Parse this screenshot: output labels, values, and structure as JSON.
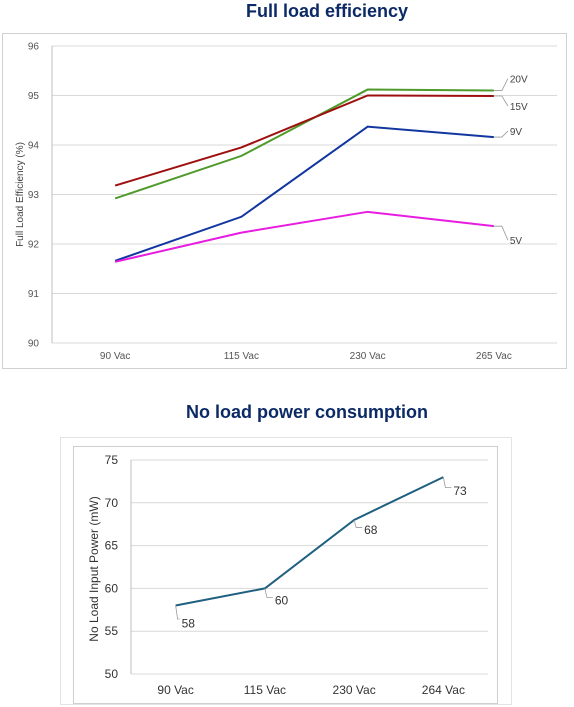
{
  "chart_data": [
    {
      "type": "line",
      "title": "Full load efficiency",
      "xlabel": "",
      "ylabel": "Full Load Efficiency (%)",
      "categories": [
        "90 Vac",
        "115 Vac",
        "230 Vac",
        "265 Vac"
      ],
      "ylim": [
        90,
        96
      ],
      "yticks": [
        90,
        91,
        92,
        93,
        94,
        95,
        96
      ],
      "grid": true,
      "series": [
        {
          "name": "20V",
          "color": "#4e9a2a",
          "values": [
            92.92,
            93.78,
            95.12,
            95.1
          ]
        },
        {
          "name": "15V",
          "color": "#9e1010",
          "values": [
            93.18,
            93.95,
            95.0,
            94.99
          ]
        },
        {
          "name": "9V",
          "color": "#1236a0",
          "values": [
            91.66,
            92.55,
            94.37,
            94.16
          ]
        },
        {
          "name": "5V",
          "color": "#e81ce0",
          "values": [
            91.64,
            92.23,
            92.65,
            92.36
          ]
        }
      ]
    },
    {
      "type": "line",
      "title": "No load power consumption",
      "xlabel": "",
      "ylabel": "No Load Input Power (mW)",
      "categories": [
        "90 Vac",
        "115 Vac",
        "230 Vac",
        "264 Vac"
      ],
      "ylim": [
        50,
        75
      ],
      "yticks": [
        50,
        55,
        60,
        65,
        70,
        75
      ],
      "grid": true,
      "series": [
        {
          "color": "#1f5f80",
          "values": [
            58,
            60,
            68,
            73
          ],
          "data_labels": [
            "58",
            "60",
            "68",
            "73"
          ]
        }
      ]
    }
  ]
}
